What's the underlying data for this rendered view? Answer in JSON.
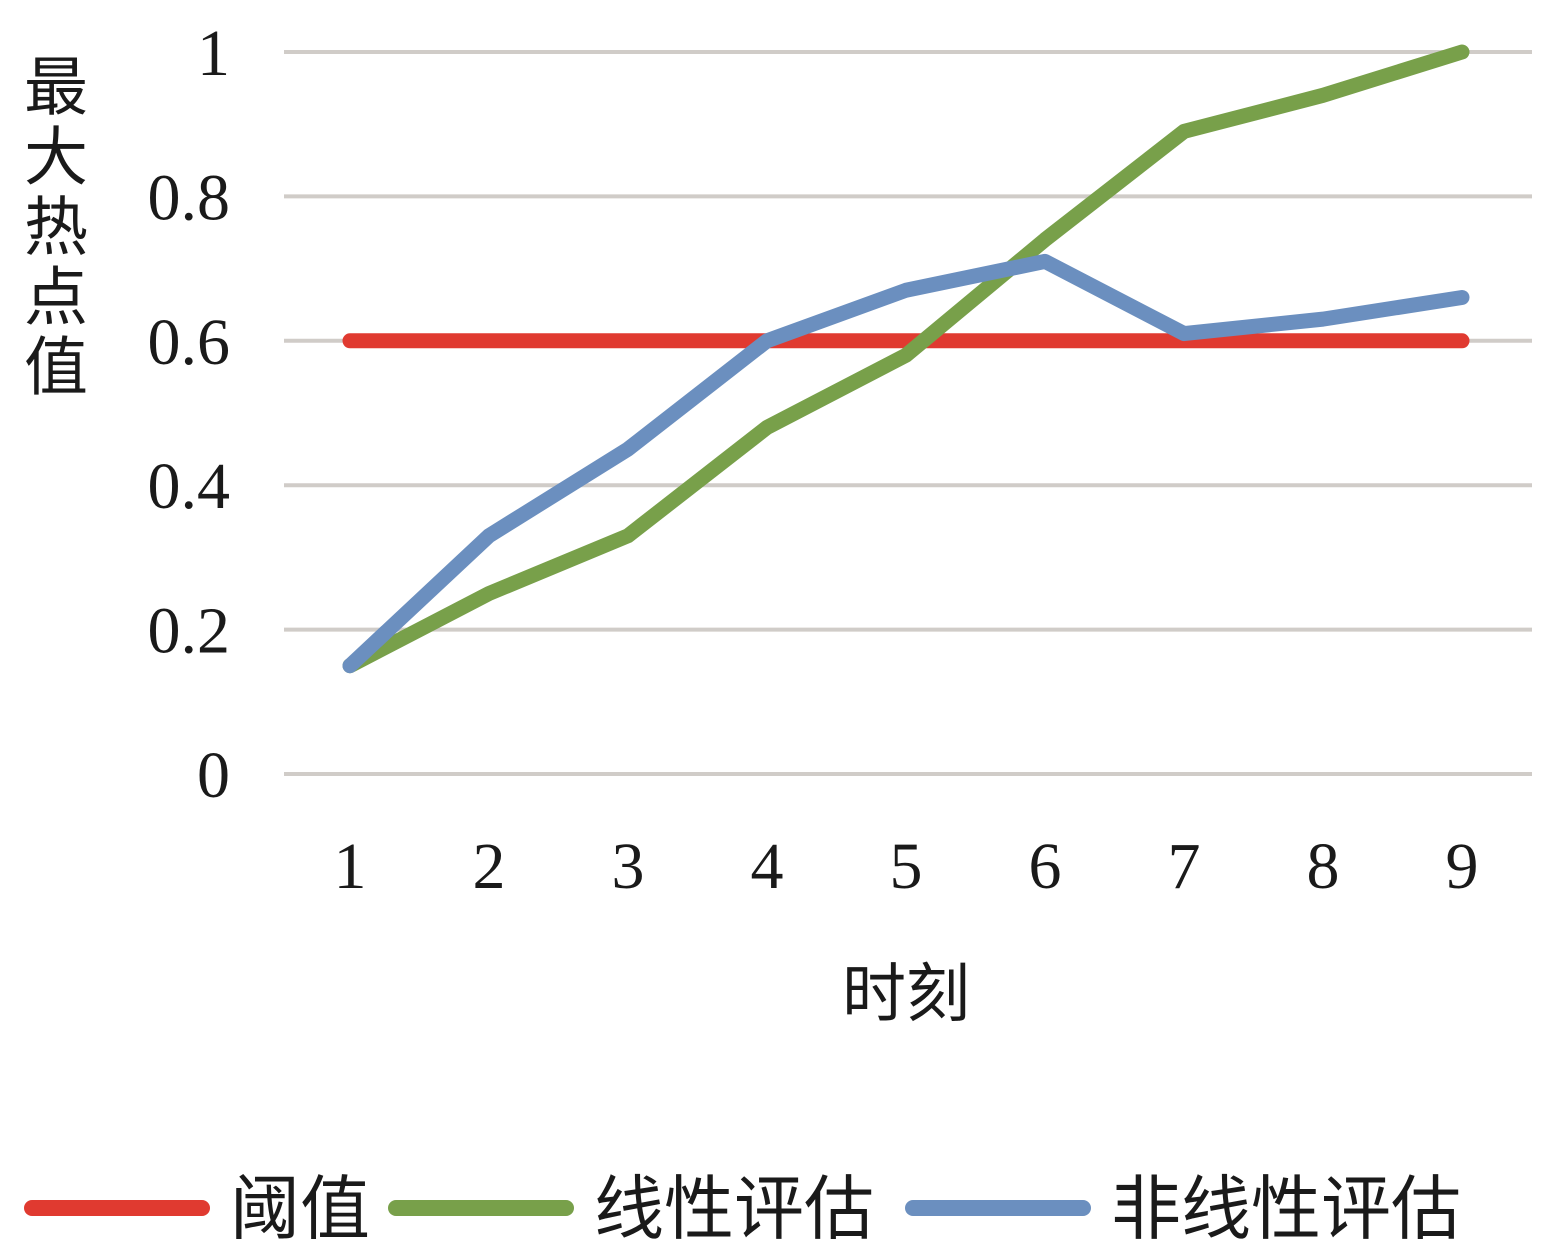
{
  "chart_data": {
    "type": "line",
    "title": "",
    "xlabel": "时刻",
    "ylabel": "最大热点值",
    "categories": [
      "1",
      "2",
      "3",
      "4",
      "5",
      "6",
      "7",
      "8",
      "9"
    ],
    "ylim": [
      0,
      1
    ],
    "yticks": [
      "0",
      "0.2",
      "0.4",
      "0.6",
      "0.8",
      "1"
    ],
    "grid": true,
    "legend_position": "bottom",
    "series": [
      {
        "name": "阈值",
        "color": "#e03a30",
        "values": [
          0.6,
          0.6,
          0.6,
          0.6,
          0.6,
          0.6,
          0.6,
          0.6,
          0.6
        ]
      },
      {
        "name": "线性评估",
        "color": "#78a04a",
        "values": [
          0.15,
          0.25,
          0.33,
          0.48,
          0.58,
          0.74,
          0.89,
          0.94,
          1.0
        ]
      },
      {
        "name": "非线性评估",
        "color": "#6b8fbf",
        "values": [
          0.15,
          0.33,
          0.45,
          0.6,
          0.67,
          0.71,
          0.61,
          0.63,
          0.66
        ]
      }
    ]
  }
}
